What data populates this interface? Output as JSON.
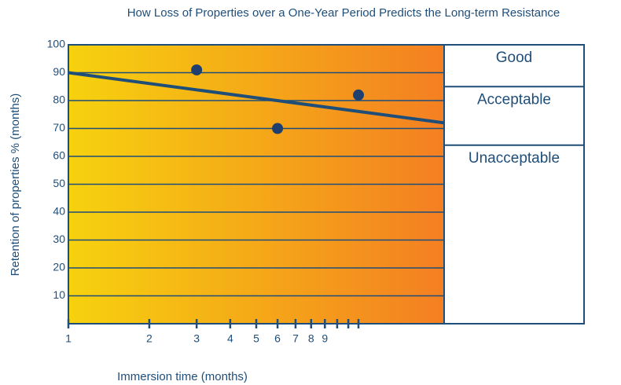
{
  "chart_data": {
    "type": "scatter",
    "title": "How Loss of Properties over a One-Year Period Predicts the Long-term Resistance",
    "x_label": "Immersion time (months)",
    "y_label": "Retention of properties % (months)",
    "x_scale": "log",
    "xlim": [
      1,
      25
    ],
    "xticks": [
      1,
      2,
      3,
      4,
      5,
      6,
      7,
      8,
      9
    ],
    "xminor_ticks": [
      10,
      11,
      12
    ],
    "ylim": [
      0,
      100
    ],
    "yticks": [
      10,
      20,
      30,
      40,
      50,
      60,
      70,
      80,
      90,
      100
    ],
    "grid": true,
    "series": [
      {
        "type": "scatter",
        "color": "#1f3f6e",
        "x": [
          3,
          6,
          12
        ],
        "values": [
          91,
          70,
          82
        ]
      },
      {
        "type": "line",
        "color": "#1f4e79",
        "x": [
          1,
          25
        ],
        "values": [
          90,
          72
        ]
      }
    ],
    "rating_labels": [
      "Good",
      "Acceptable",
      "Unacceptable"
    ],
    "rating_bounds": [
      100,
      85,
      64,
      0
    ]
  }
}
